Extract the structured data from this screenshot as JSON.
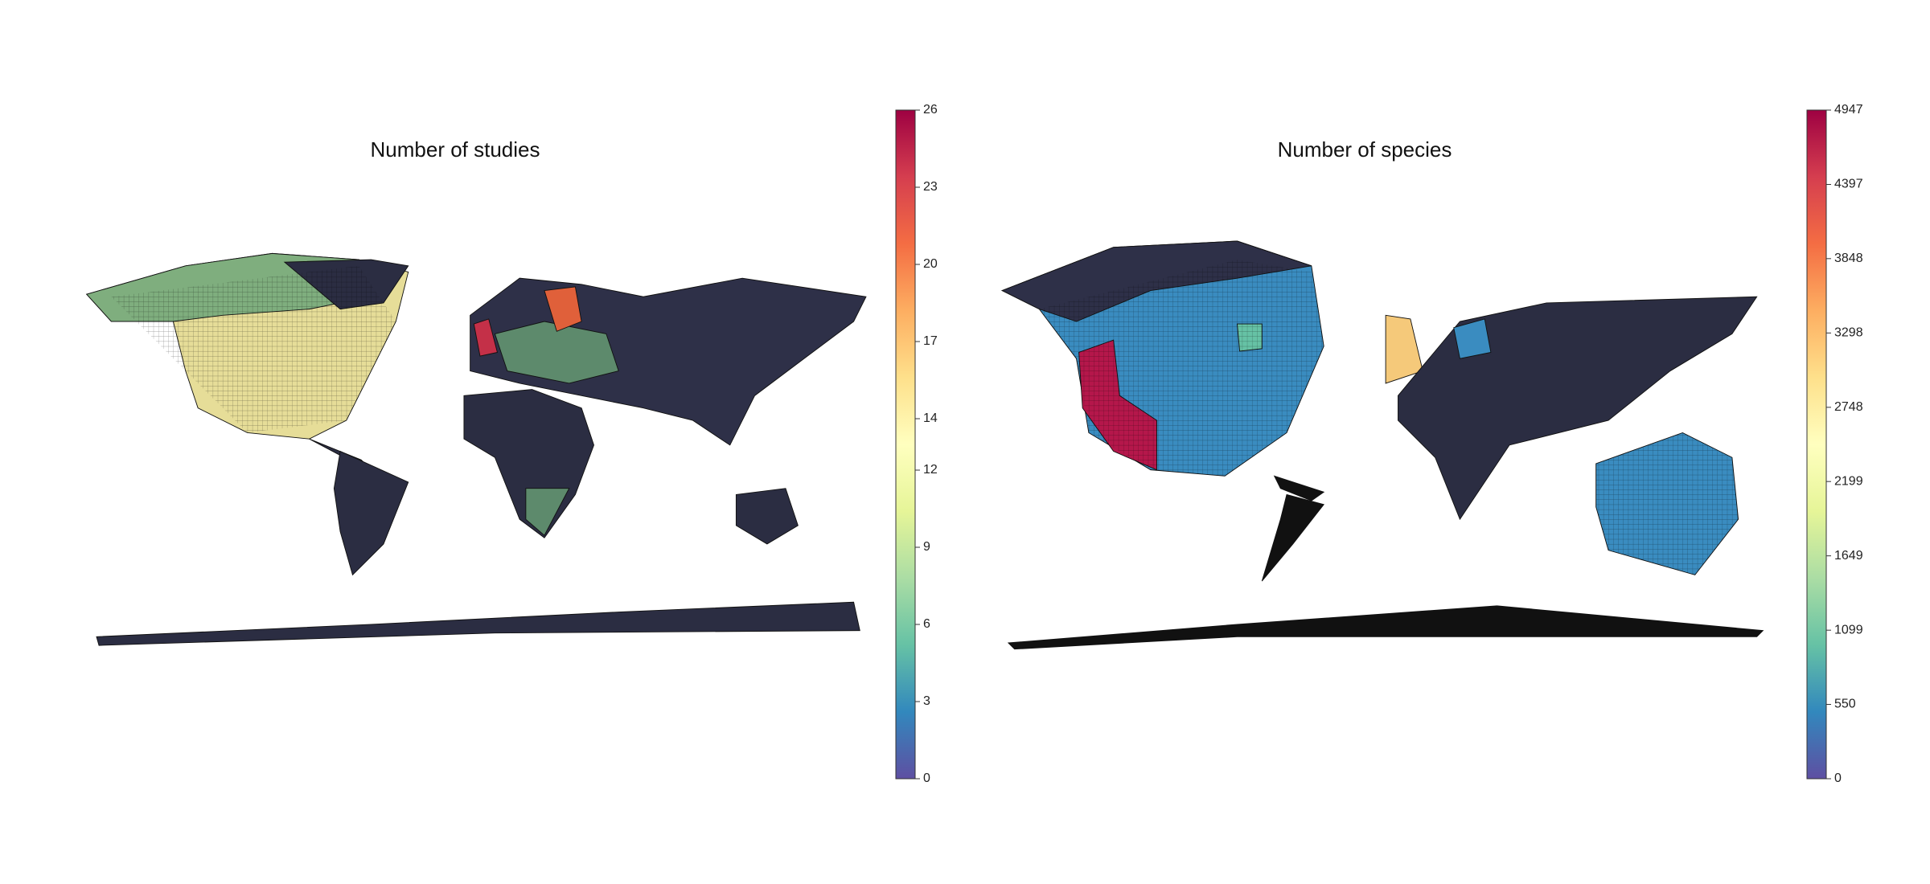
{
  "maps": [
    {
      "title": "Number of studies",
      "colorbar": {
        "lim": [
          0,
          26
        ],
        "ticks": [
          0,
          3,
          6,
          9,
          12,
          14,
          17,
          20,
          23,
          26
        ],
        "colors": [
          "#5e4fa2",
          "#3288bd",
          "#66c2a5",
          "#abdda4",
          "#e6f598",
          "#ffffbf",
          "#fee08b",
          "#fdae61",
          "#f46d43",
          "#d53e4f",
          "#9e0142"
        ]
      }
    },
    {
      "title": "Number of species",
      "colorbar": {
        "lim": [
          0,
          4947
        ],
        "ticks": [
          0,
          550,
          1099,
          1649,
          2199,
          2748,
          3298,
          3848,
          4397,
          4947
        ],
        "colors": [
          "#5e4fa2",
          "#3288bd",
          "#66c2a5",
          "#abdda4",
          "#e6f598",
          "#ffffbf",
          "#fee08b",
          "#fdae61",
          "#f46d43",
          "#d53e4f",
          "#9e0142"
        ]
      }
    }
  ]
}
